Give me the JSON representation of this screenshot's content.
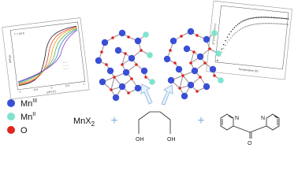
{
  "legend": [
    {
      "label": "Mn",
      "sup": "III"
    },
    {
      "label": "Mn",
      "sup": "II"
    },
    {
      "label": "O"
    }
  ],
  "reagents": {
    "metal": {
      "label": "MnX",
      "sub": "2"
    },
    "plus": "+",
    "diol": [
      "OH",
      "OH"
    ],
    "ketone": {
      "oxygen": "O",
      "nitrogens": [
        "N",
        "N"
      ]
    }
  },
  "insets": {
    "hysteresis": {
      "note": "T = 40 K",
      "ylabel": "M/Nμ",
      "ylabel_sub": "B",
      "xlabel": "μ0H (T)",
      "xticks": [
        "-1",
        "-0.5",
        "0",
        "0.5",
        "1"
      ]
    },
    "susceptibility": {
      "xlabel": "Temperature (K)",
      "ylabel": "χT (cm3 K mol-1)"
    }
  }
}
